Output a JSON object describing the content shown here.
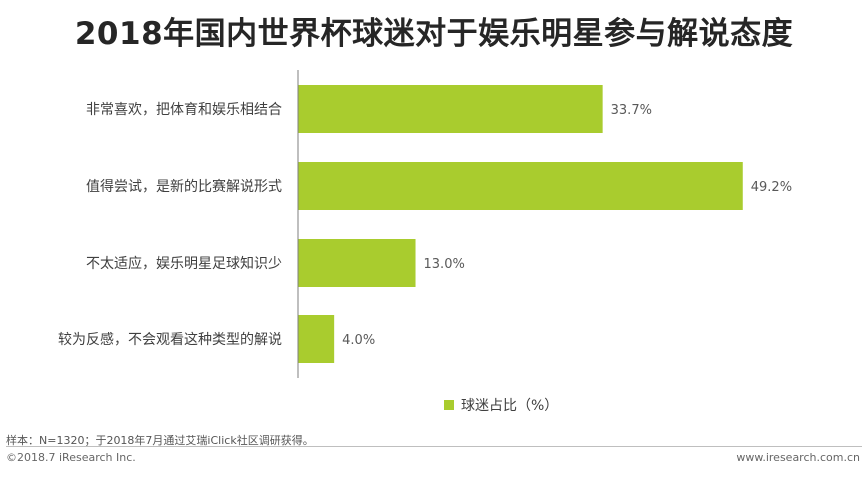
{
  "title": "2018年国内世界杯球迷对于娱乐明星参与解说态度",
  "chart_data": {
    "type": "bar",
    "orientation": "horizontal",
    "categories": [
      "非常喜欢，把体育和娱乐相结合",
      "值得尝试，是新的比赛解说形式",
      "不太适应，娱乐明星足球知识少",
      "较为反感，不会观看这种类型的解说"
    ],
    "series": [
      {
        "name": "球迷占比（%）",
        "values": [
          33.7,
          49.2,
          13.0,
          4.0
        ],
        "data_labels": [
          "33.7%",
          "49.2%",
          "13.0%",
          "4.0%"
        ]
      }
    ],
    "xlim": [
      0,
      50
    ],
    "grid": false,
    "legend": "bottom-right",
    "bar_color": "#a9cc2e"
  },
  "footer": {
    "sample_note": "样本：N=1320；于2018年7月通过艾瑞iClick社区调研获得。",
    "copyright": "©2018.7 iResearch Inc.",
    "website": "www.iresearch.com.cn"
  }
}
